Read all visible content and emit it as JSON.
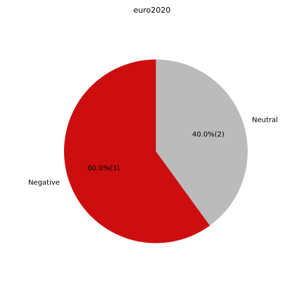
{
  "chart_data": {
    "type": "pie",
    "title": "euro2020",
    "slices": [
      {
        "label": "Neutral",
        "value": 2,
        "percent_label": "40.0%(2)",
        "color": "#bbbbbb"
      },
      {
        "label": "Negative",
        "value": 3,
        "percent_label": "60.0%(3)",
        "color": "#cc0e0e"
      }
    ],
    "start_angle_deg": 90,
    "direction": "clockwise",
    "legend": "none"
  }
}
